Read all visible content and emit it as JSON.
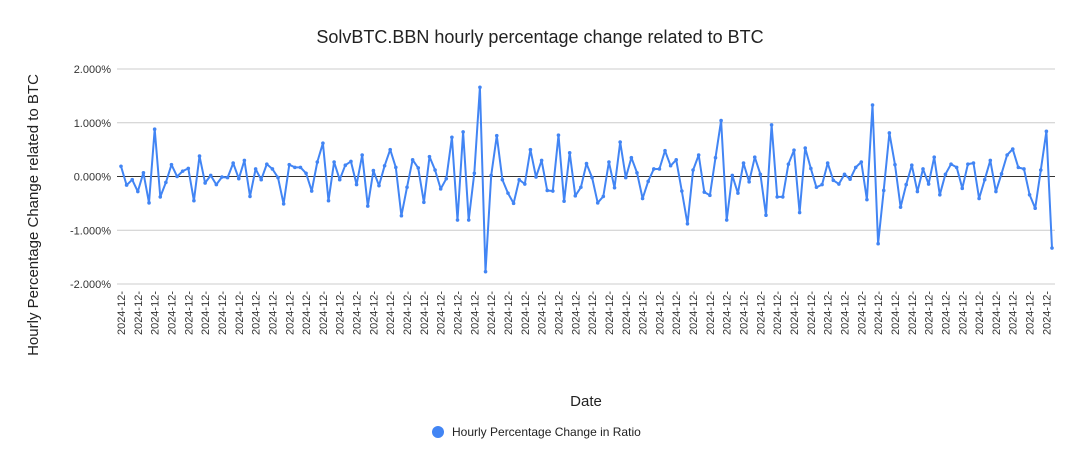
{
  "chart_data": {
    "type": "line",
    "title": "SolvBTC.BBN hourly percentage change related to BTC",
    "xlabel": "Date",
    "ylabel": "Hourly Percentage Change related to BTC",
    "ylim": [
      -2,
      2
    ],
    "y_ticks": [
      2,
      1,
      0,
      -1,
      -2
    ],
    "y_tick_labels": [
      "2.000%",
      "1.000%",
      "0.000%",
      "-1.000%",
      "-2.000%"
    ],
    "x_tick_label": "2024-12-",
    "x_tick_every": 3,
    "grid": true,
    "legend_placement": "bottom",
    "series": [
      {
        "name": "Hourly Percentage Change in Ratio",
        "color": "#4285f4",
        "unit": "%",
        "values": [
          0.19,
          -0.16,
          -0.06,
          -0.28,
          0.07,
          -0.49,
          0.88,
          -0.38,
          -0.11,
          0.22,
          0.0,
          0.1,
          0.15,
          -0.45,
          0.38,
          -0.12,
          0.02,
          -0.15,
          -0.01,
          -0.02,
          0.25,
          -0.04,
          0.3,
          -0.37,
          0.14,
          -0.06,
          0.23,
          0.14,
          -0.02,
          -0.51,
          0.22,
          0.17,
          0.17,
          0.06,
          -0.27,
          0.27,
          0.62,
          -0.45,
          0.27,
          -0.06,
          0.21,
          0.28,
          -0.15,
          0.4,
          -0.55,
          0.11,
          -0.17,
          0.2,
          0.5,
          0.17,
          -0.73,
          -0.2,
          0.31,
          0.16,
          -0.48,
          0.37,
          0.12,
          -0.23,
          -0.04,
          0.73,
          -0.81,
          0.83,
          -0.81,
          0.06,
          1.66,
          -1.77,
          0.02,
          0.76,
          -0.06,
          -0.31,
          -0.5,
          -0.06,
          -0.14,
          0.5,
          -0.01,
          0.3,
          -0.26,
          -0.27,
          0.77,
          -0.46,
          0.44,
          -0.36,
          -0.2,
          0.24,
          -0.02,
          -0.49,
          -0.37,
          0.27,
          -0.21,
          0.64,
          -0.02,
          0.35,
          0.07,
          -0.41,
          -0.09,
          0.14,
          0.14,
          0.48,
          0.2,
          0.31,
          -0.27,
          -0.88,
          0.12,
          0.4,
          -0.29,
          -0.35,
          0.35,
          1.04,
          -0.81,
          0.02,
          -0.31,
          0.25,
          -0.1,
          0.36,
          0.04,
          -0.72,
          0.96,
          -0.38,
          -0.38,
          0.23,
          0.49,
          -0.67,
          0.53,
          0.15,
          -0.2,
          -0.15,
          0.25,
          -0.07,
          -0.14,
          0.04,
          -0.05,
          0.17,
          0.27,
          -0.43,
          1.33,
          -1.25,
          -0.26,
          0.81,
          0.22,
          -0.57,
          -0.15,
          0.21,
          -0.28,
          0.14,
          -0.14,
          0.36,
          -0.34,
          0.04,
          0.23,
          0.17,
          -0.22,
          0.23,
          0.25,
          -0.41,
          -0.06,
          0.3,
          -0.28,
          0.05,
          0.4,
          0.51,
          0.17,
          0.14,
          -0.34,
          -0.59,
          0.12,
          0.84,
          -1.33
        ]
      }
    ]
  },
  "colors": {
    "series": "#4285f4",
    "grid": "#cccccc",
    "zero_line": "#333333",
    "text": "#222222"
  }
}
